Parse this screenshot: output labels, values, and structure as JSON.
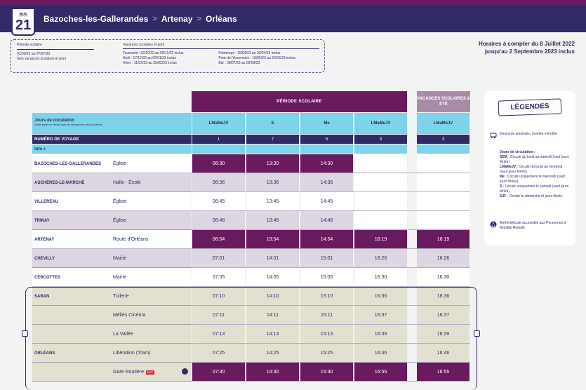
{
  "header": {
    "badge_top": "BUS",
    "line_number": "21",
    "route": [
      "Bazoches-les-Gallerandes",
      "Artenay",
      "Orléans"
    ],
    "separator": ">"
  },
  "periods": {
    "school_title": "Période scolaire",
    "school_dates": "01/09/22 au 07/07/23",
    "school_note": "hors vacances scolaires et pont",
    "holiday_title": "Vacances scolaires et pont",
    "holidays_col1": [
      "Toussaint : 22/10/22 au 05/11/22 inclus",
      "Noël : 17/12/22 au 02/01/23 inclus",
      "Hiver : 11/02/23 au 25/02/23 inclus"
    ],
    "holidays_col2": [
      "Printemps : 15/04/22 au 30/04/23 inclus",
      "Pont de l'Ascension : 18/05/23 au 20/05/23 inclus",
      "Été : 08/07/23 au 02/09/23"
    ]
  },
  "validity": {
    "line1": "Horaires à compter du 8 Juillet 2022",
    "line2": "jusqu'au 2 Septembre 2023 inclus"
  },
  "table": {
    "school_header": "PÉRIODE SCOLAIRE",
    "holiday_header": "VACANCES SCOLAIRES & ÉTÉ",
    "days_label": "Jours de circulation",
    "days_note": "Cette ligne ne circule pas les dimanches et jours fériés",
    "trip_label": "NUMÉRO DE VOYAGE",
    "info_label": "Info +",
    "day_codes": [
      "LMaMeJV",
      "S",
      "Me",
      "LMaMeJV",
      "LMaMeJV"
    ],
    "trip_numbers": [
      "1",
      "7",
      "5",
      "3",
      "3"
    ],
    "rows": [
      {
        "stop": "BAZOCHES-LES-GALLERANDES",
        "place": "Église",
        "times": [
          "06:30",
          "13:30",
          "14:30",
          "",
          ""
        ]
      },
      {
        "stop": "ASCHÈRES-LE-MARCHÉ",
        "place": "Halle - École",
        "times": [
          "06:36",
          "13:36",
          "14:36",
          "",
          ""
        ]
      },
      {
        "stop": "VILLEREAU",
        "place": "Église",
        "times": [
          "06:45",
          "13:45",
          "14:45",
          "",
          ""
        ]
      },
      {
        "stop": "TRINAY",
        "place": "Église",
        "times": [
          "06:48",
          "13:48",
          "14:48",
          "",
          ""
        ]
      },
      {
        "stop": "ARTENAY",
        "place": "Route d'Orléans",
        "times": [
          "06:54",
          "13:54",
          "14:54",
          "16:19",
          "16:19"
        ]
      },
      {
        "stop": "CHEVILLY",
        "place": "Mairie",
        "times": [
          "07:01",
          "14:01",
          "15:01",
          "16:26",
          "16:26"
        ]
      },
      {
        "stop": "CERCOTTES",
        "place": "Mairie",
        "times": [
          "07:05",
          "14:05",
          "15:05",
          "16:30",
          "16:30"
        ]
      },
      {
        "stop": "SARAN",
        "place": "Tuilerie",
        "times": [
          "07:10",
          "14:10",
          "15:10",
          "16:36",
          "16:36"
        ]
      },
      {
        "stop": "",
        "place": "Méliès Cinéma",
        "times": [
          "07:11",
          "14:11",
          "15:11",
          "16:37",
          "16:37"
        ]
      },
      {
        "stop": "",
        "place": "La Vallée",
        "times": [
          "07:13",
          "14:13",
          "15:13",
          "16:39",
          "16:39"
        ]
      },
      {
        "stop": "ORLÉANS",
        "place": "Libération (Tram)",
        "times": [
          "07:25",
          "14:25",
          "15:25",
          "16:46",
          "16:46"
        ]
      },
      {
        "stop": "",
        "place": "Gare Routière",
        "times": [
          "07:30",
          "14:30",
          "15:30",
          "16:55",
          "16:55"
        ]
      }
    ]
  },
  "legend": {
    "title": "LÉGENDES",
    "descent": "Descente autorisée, montée interdite.",
    "days_title": "Jours de circulation :",
    "days": [
      {
        "code": "SEM",
        "text": " : Circule du lundi au samedi (sauf jours fériés)."
      },
      {
        "code": "LMaMeJV",
        "text": " : Circule du lundi au vendredi (sauf jours fériés)."
      },
      {
        "code": "Me",
        "text": " : Circule uniquement le mercredi (sauf jours fériés)."
      },
      {
        "code": "S",
        "text": " : Circule uniquement le samedi (sauf jours fériés)."
      },
      {
        "code": "DJF",
        "text": " : Circule le dimanche et jours fériés."
      }
    ],
    "pmr": "Arrêt/véhicule accessible aux Personnes à Mobilité Réduite."
  },
  "colors": {
    "navy": "#302a66",
    "purple": "#6a1a5e",
    "mauve": "#a88ba6",
    "cyan": "#7dd3ea",
    "lilac": "#ddd5e1",
    "beige": "#e2e1d1"
  }
}
